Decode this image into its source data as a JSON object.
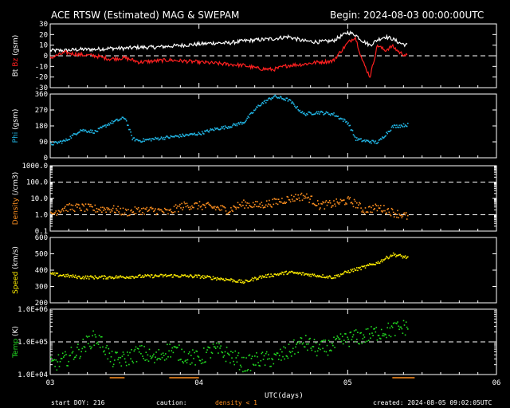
{
  "header": {
    "title": "ACE RTSW (Estimated) MAG & SWEPAM",
    "begin": "Begin: 2024-08-03 00:00:00UTC"
  },
  "footer": {
    "start_doy": "start DOY: 216",
    "caution": "caution:",
    "density_note": "density < 1",
    "created": "created: 2024-08-05 09:02:05UTC",
    "xlabel": "UTC(days)"
  },
  "colors": {
    "bt": "#ffffff",
    "bz": "#ff2020",
    "phi": "#22b8e8",
    "density": "#ff9020",
    "speed": "#ffee00",
    "temp": "#22dd22",
    "caution": "#ff9020"
  },
  "chart_data": [
    {
      "type": "line",
      "panel": "mag",
      "ylabel_parts": [
        "Bt",
        "Bz",
        "(gsm)"
      ],
      "ylim": [
        -30,
        30
      ],
      "yticks": [
        "30",
        "20",
        "10",
        "0",
        "-10",
        "-20",
        "-30"
      ],
      "dashed_at": [
        0
      ],
      "x_range_days": [
        0,
        3
      ],
      "x_ticks": [
        "03",
        "04",
        "05",
        "06"
      ],
      "series": [
        {
          "name": "Bt",
          "x": [
            0,
            0.1,
            0.2,
            0.3,
            0.4,
            0.5,
            0.6,
            0.7,
            0.8,
            0.9,
            1.0,
            1.1,
            1.2,
            1.3,
            1.4,
            1.5,
            1.6,
            1.7,
            1.8,
            1.9,
            2.0,
            2.05,
            2.1,
            2.15,
            2.2,
            2.25,
            2.3,
            2.35,
            2.4
          ],
          "values": [
            5,
            5,
            6,
            6,
            7,
            7,
            8,
            8,
            9,
            10,
            11,
            12,
            12,
            14,
            15,
            16,
            18,
            14,
            13,
            14,
            22,
            20,
            14,
            10,
            15,
            18,
            16,
            12,
            10
          ]
        },
        {
          "name": "Bz",
          "x": [
            0,
            0.1,
            0.2,
            0.3,
            0.4,
            0.5,
            0.6,
            0.7,
            0.8,
            0.9,
            1.0,
            1.1,
            1.2,
            1.3,
            1.4,
            1.5,
            1.6,
            1.7,
            1.8,
            1.9,
            2.0,
            2.05,
            2.1,
            2.15,
            2.2,
            2.25,
            2.3,
            2.35,
            2.4
          ],
          "values": [
            -2,
            3,
            1,
            0,
            -3,
            -2,
            -6,
            -5,
            -4,
            -5,
            -6,
            -7,
            -8,
            -9,
            -12,
            -13,
            -9,
            -8,
            -6,
            -5,
            12,
            18,
            -5,
            -20,
            10,
            5,
            9,
            3,
            0
          ]
        }
      ]
    },
    {
      "type": "scatter",
      "panel": "phi",
      "ylabel_parts": [
        "Phi",
        "(gsm)"
      ],
      "ylim": [
        0,
        360
      ],
      "yticks": [
        "360",
        "270",
        "180",
        "90",
        "0"
      ],
      "series": [
        {
          "name": "Phi",
          "x": [
            0,
            0.1,
            0.2,
            0.3,
            0.4,
            0.5,
            0.55,
            0.6,
            0.7,
            0.8,
            0.9,
            1.0,
            1.1,
            1.2,
            1.3,
            1.4,
            1.5,
            1.6,
            1.7,
            1.8,
            1.9,
            2.0,
            2.05,
            2.1,
            2.2,
            2.3,
            2.4
          ],
          "values": [
            80,
            100,
            160,
            150,
            200,
            230,
            110,
            100,
            110,
            120,
            130,
            140,
            165,
            180,
            205,
            300,
            350,
            330,
            250,
            260,
            250,
            200,
            110,
            100,
            90,
            180,
            190
          ]
        }
      ]
    },
    {
      "type": "scatter",
      "panel": "density",
      "ylabel_parts": [
        "Density",
        "(/cm3)"
      ],
      "yscale": "log",
      "ylim": [
        0.1,
        1000
      ],
      "yticks": [
        "1000.0",
        "100.0",
        "10.0",
        "1.0",
        "0.1"
      ],
      "dashed_at": [
        100,
        1
      ],
      "series": [
        {
          "name": "Density",
          "x": [
            0,
            0.1,
            0.2,
            0.3,
            0.4,
            0.5,
            0.6,
            0.7,
            0.8,
            0.9,
            1.0,
            1.1,
            1.2,
            1.3,
            1.4,
            1.5,
            1.6,
            1.7,
            1.8,
            1.9,
            2.0,
            2.1,
            2.2,
            2.3,
            2.4
          ],
          "values": [
            1,
            3,
            3,
            2.5,
            2.5,
            1.5,
            2,
            2,
            1.5,
            4,
            4,
            3,
            2,
            5,
            4,
            6,
            10,
            15,
            4,
            5,
            8,
            2,
            3,
            1.5,
            0.8
          ]
        }
      ]
    },
    {
      "type": "scatter",
      "panel": "speed",
      "ylabel_parts": [
        "Speed",
        "(km/s)"
      ],
      "ylim": [
        200,
        600
      ],
      "yticks": [
        "600",
        "500",
        "400",
        "300",
        "200"
      ],
      "series": [
        {
          "name": "Speed",
          "x": [
            0,
            0.2,
            0.4,
            0.6,
            0.8,
            1.0,
            1.2,
            1.3,
            1.4,
            1.5,
            1.6,
            1.8,
            1.9,
            2.0,
            2.1,
            2.2,
            2.3,
            2.4
          ],
          "values": [
            380,
            360,
            360,
            365,
            370,
            365,
            345,
            330,
            360,
            375,
            390,
            370,
            360,
            395,
            420,
            450,
            500,
            480
          ]
        }
      ]
    },
    {
      "type": "scatter",
      "panel": "temp",
      "ylabel_parts": [
        "Temp",
        "(K)"
      ],
      "yscale": "log",
      "ylim": [
        10000,
        1000000
      ],
      "yticks": [
        "1.0E+06",
        "1.0E+05",
        "1.0E+04"
      ],
      "dashed_at": [
        100000
      ],
      "series": [
        {
          "name": "Temp",
          "x": [
            0,
            0.1,
            0.2,
            0.3,
            0.4,
            0.5,
            0.6,
            0.7,
            0.8,
            0.9,
            1.0,
            1.1,
            1.2,
            1.3,
            1.4,
            1.5,
            1.6,
            1.7,
            1.8,
            1.9,
            2.0,
            2.1,
            2.2,
            2.3,
            2.4
          ],
          "values": [
            20000,
            30000,
            60000,
            140000,
            30000,
            30000,
            50000,
            30000,
            60000,
            40000,
            30000,
            60000,
            40000,
            20000,
            30000,
            30000,
            50000,
            100000,
            60000,
            80000,
            130000,
            150000,
            200000,
            250000,
            300000
          ]
        }
      ]
    }
  ],
  "density_caution_ranges_days": [
    [
      0.4,
      0.5
    ],
    [
      0.8,
      1.0
    ],
    [
      2.3,
      2.45
    ]
  ]
}
